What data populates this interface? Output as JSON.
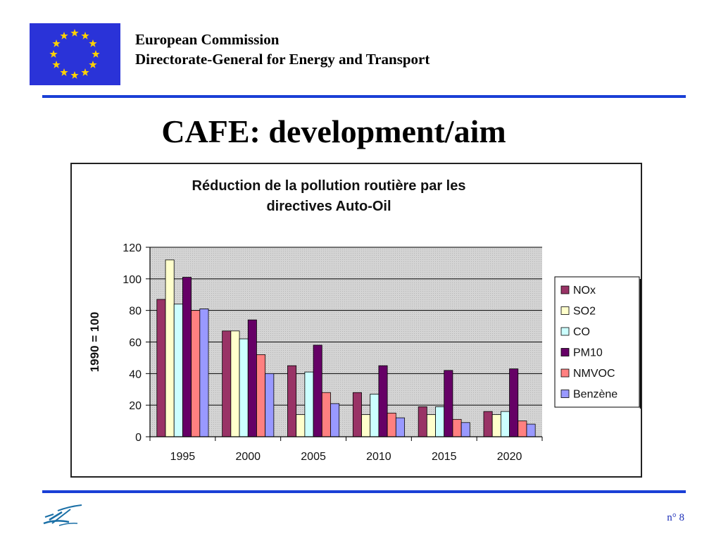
{
  "header": {
    "org_line1": "European Commission",
    "org_line2": "Directorate-General for Energy and Transport"
  },
  "slide": {
    "title": "CAFE: development/aim",
    "page_number": "n° 8"
  },
  "colors": {
    "rule_blue": "#1a3fd6",
    "flag_blue": "#2a33d8",
    "star_yellow": "#ffd200"
  },
  "chart_data": {
    "type": "bar",
    "title": "Réduction de la pollution routière par les directives Auto-Oil",
    "title_lines": [
      "Réduction de la pollution routière par les",
      "directives Auto-Oil"
    ],
    "xlabel": "",
    "ylabel": "1990 = 100",
    "ylim": [
      0,
      120
    ],
    "yticks": [
      0,
      20,
      40,
      60,
      80,
      100,
      120
    ],
    "categories": [
      "1995",
      "2000",
      "2005",
      "2010",
      "2015",
      "2020"
    ],
    "grid": true,
    "legend_position": "right",
    "series": [
      {
        "name": "NOx",
        "color": "#993366",
        "values": [
          87,
          67,
          45,
          28,
          19,
          16
        ]
      },
      {
        "name": "SO2",
        "color": "#ffffcc",
        "values": [
          112,
          67,
          14,
          14,
          14,
          14
        ]
      },
      {
        "name": "CO",
        "color": "#ccffff",
        "values": [
          84,
          62,
          41,
          27,
          19,
          16
        ]
      },
      {
        "name": "PM10",
        "color": "#660066",
        "values": [
          101,
          74,
          58,
          45,
          42,
          43
        ]
      },
      {
        "name": "NMVOC",
        "color": "#ff8080",
        "values": [
          80,
          52,
          28,
          15,
          11,
          10
        ]
      },
      {
        "name": "Benzène",
        "color": "#9999ff",
        "values": [
          81,
          40,
          21,
          12,
          9,
          8
        ]
      }
    ]
  }
}
